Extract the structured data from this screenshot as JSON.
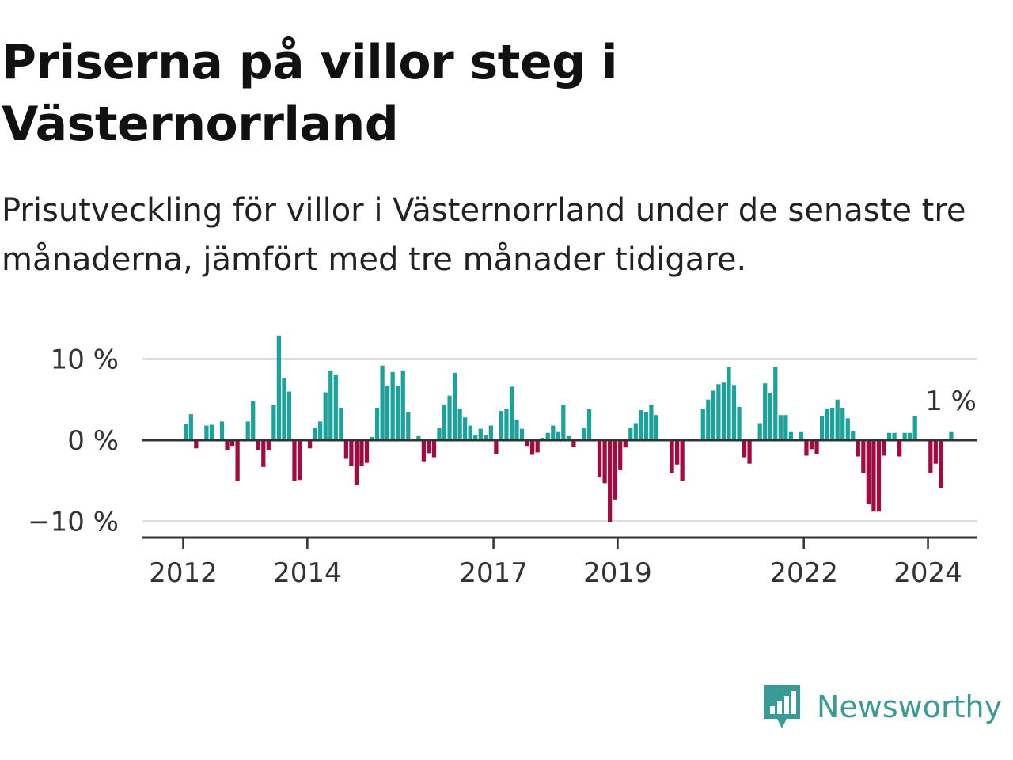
{
  "title": "Priserna på villor steg i Västernorrland",
  "subtitle": "Prisutveckling för villor i Västernorrland under de senaste tre månaderna, jämfört med tre månader tidigare.",
  "logo": {
    "text": "Newsworthy",
    "icon": "newsworthy-logo-icon"
  },
  "colors": {
    "positive": "#1aa39b",
    "negative": "#a5093f",
    "grid": "#dddddd",
    "axis": "#333333",
    "brand": "#3a9a96"
  },
  "chart_data": {
    "type": "bar",
    "ylim": [
      -12,
      16
    ],
    "yticks": [
      -10,
      0,
      10
    ],
    "ytick_labels": [
      "−10 %",
      "0 %",
      "10 %"
    ],
    "xticks": [
      2012,
      2014,
      2017,
      2019,
      2022,
      2024
    ],
    "xtick_labels": [
      "2012",
      "2014",
      "2017",
      "2019",
      "2022",
      "2024"
    ],
    "grid": true,
    "last_value_label": "1 %",
    "start_year": 2012,
    "start_month": 1,
    "values": [
      2,
      3.2,
      -1,
      0,
      1.8,
      1.9,
      0,
      2.3,
      -1.2,
      -0.7,
      -5,
      0,
      2.3,
      4.8,
      -1.2,
      -3.3,
      -1.2,
      4.3,
      12.9,
      7.6,
      6,
      -5,
      -4.9,
      0,
      -1,
      1.5,
      2.3,
      5.9,
      8.6,
      8,
      4,
      -2.3,
      -3.2,
      -5.5,
      -3.2,
      -2.8,
      0.4,
      4,
      9.2,
      6.7,
      8.4,
      6.7,
      8.6,
      3.5,
      0,
      0.5,
      -2.6,
      -1.6,
      -2.1,
      1.5,
      4.4,
      5.5,
      8.3,
      3.9,
      2.8,
      1.8,
      0.6,
      1.4,
      0.6,
      1.8,
      -1.7,
      3.6,
      3.9,
      6.6,
      2.5,
      1.4,
      -0.7,
      -1.8,
      -1.5,
      0.3,
      0.9,
      1.8,
      1,
      4.4,
      0.5,
      -0.8,
      0,
      1.5,
      3.8,
      0,
      -4.6,
      -5.3,
      -10.1,
      -7.3,
      -3.7,
      -0.9,
      1.5,
      2.1,
      3.7,
      3.5,
      4.4,
      3.1,
      0,
      0,
      -4.1,
      -3,
      -5,
      0,
      0,
      0,
      3.9,
      5,
      6.1,
      6.9,
      7.1,
      9,
      6.8,
      4.1,
      -2.1,
      -2.9,
      0,
      2.1,
      7,
      5.8,
      9,
      3.1,
      3.1,
      1,
      0,
      1,
      -1.9,
      -1.1,
      -1.7,
      3,
      3.9,
      4,
      5,
      4,
      2.7,
      1.1,
      -2,
      -4,
      -7.9,
      -8.8,
      -8.8,
      -1.9,
      0.9,
      0.9,
      -2,
      0.9,
      0.9,
      3,
      0,
      0,
      -4,
      -2.9,
      -5.9,
      0,
      1
    ]
  }
}
